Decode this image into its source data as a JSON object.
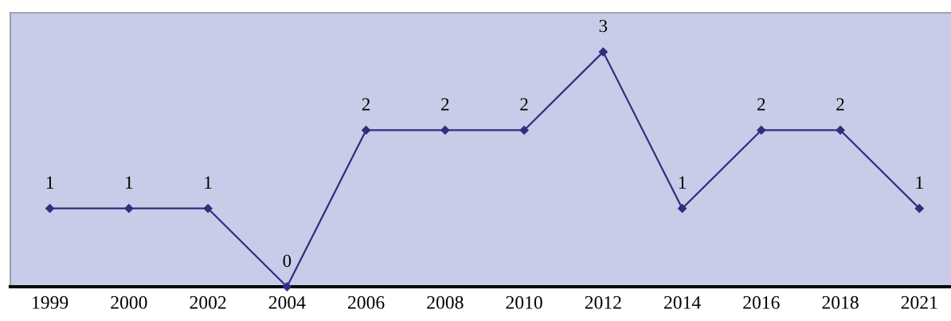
{
  "chart_data": {
    "type": "line",
    "categories": [
      "1999",
      "2000",
      "2002",
      "2004",
      "2006",
      "2008",
      "2010",
      "2012",
      "2014",
      "2016",
      "2018",
      "2021"
    ],
    "values": [
      1,
      1,
      1,
      0,
      2,
      2,
      2,
      3,
      1,
      2,
      2,
      1
    ],
    "color": "#2e2f7e",
    "ylim": [
      0,
      3.5
    ],
    "tick_labels": "x",
    "data_labels": true,
    "marker": "diamond",
    "line_style": "solid"
  }
}
